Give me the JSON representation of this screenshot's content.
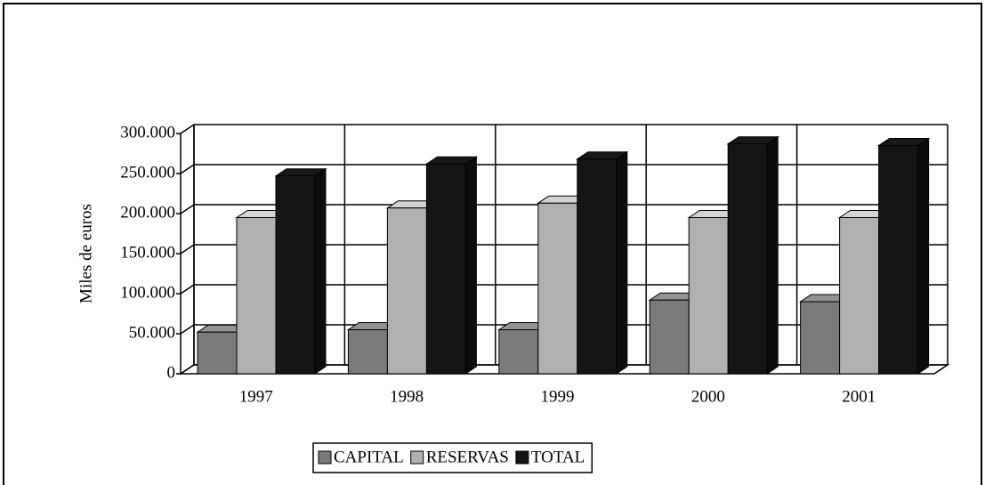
{
  "chart_data": {
    "type": "bar3d",
    "ylabel": "Miles de euros",
    "categories": [
      "1997",
      "1998",
      "1999",
      "2000",
      "2001"
    ],
    "series": [
      {
        "name": "CAPITAL",
        "color": "#7a7a7a",
        "values": [
          52000,
          55000,
          55000,
          92000,
          90000
        ]
      },
      {
        "name": "RESERVAS",
        "color": "#b0b0b0",
        "values": [
          195000,
          207000,
          213000,
          195000,
          195000
        ]
      },
      {
        "name": "TOTAL",
        "color": "#141414",
        "values": [
          247000,
          262000,
          268000,
          287000,
          285000
        ]
      }
    ],
    "ylim": [
      0,
      300000
    ],
    "yticks": [
      0,
      {
        "value": 50000,
        "label": "50.000"
      },
      {
        "value": 100000,
        "label": "100.000"
      },
      {
        "value": 150000,
        "label": "150.000"
      },
      {
        "value": 200000,
        "label": "200.000"
      },
      {
        "value": 250000,
        "label": "250.000"
      },
      {
        "value": 300000,
        "label": "300.000"
      }
    ],
    "grid": true,
    "legend": "bottom"
  }
}
